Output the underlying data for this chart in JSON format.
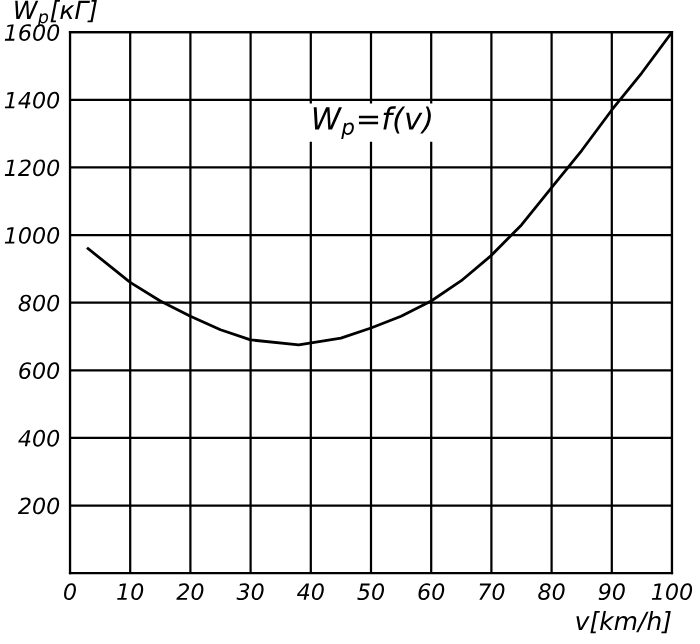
{
  "chart_data": {
    "type": "line",
    "xlabel": "v[km/h]",
    "ylabel": "W$_{p}$[кГ]",
    "annotations": [
      "W$_{p}$=f(v)"
    ],
    "x": [
      3,
      10,
      15,
      20,
      25,
      30,
      38,
      45,
      50,
      55,
      60,
      65,
      70,
      75,
      80,
      85,
      90,
      95,
      100
    ],
    "series": [
      {
        "color": "#000000",
        "values": [
          960,
          860,
          805,
          760,
          720,
          690,
          675,
          695,
          725,
          760,
          805,
          865,
          940,
          1030,
          1140,
          1250,
          1370,
          1480,
          1600
        ]
      }
    ],
    "xlim": [
      0,
      100
    ],
    "ylim": [
      0,
      1600
    ],
    "xticks": [
      0,
      10,
      20,
      30,
      40,
      50,
      60,
      70,
      80,
      90,
      100
    ],
    "yticks": [
      200,
      400,
      600,
      800,
      1000,
      1200,
      1400,
      1600
    ],
    "grid": true,
    "marker": "none",
    "line_style": "solid"
  }
}
